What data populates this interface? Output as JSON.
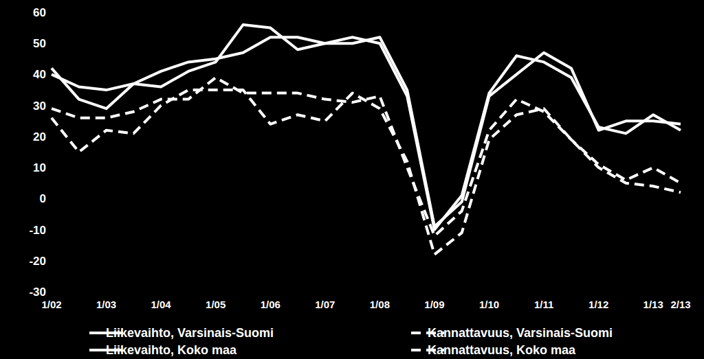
{
  "chart_data": {
    "type": "line",
    "categories": [
      "1/02",
      null,
      "1/03",
      null,
      "1/04",
      null,
      "1/05",
      null,
      "1/06",
      null,
      "1/07",
      null,
      "1/08",
      null,
      "1/09",
      null,
      "1/10",
      null,
      "1/11",
      null,
      "1/12",
      null,
      "1/13",
      "2/13"
    ],
    "series": [
      {
        "name": "Liikevaihto, Varsinais-Suomi",
        "color": "#ffffff",
        "line_style": "solid",
        "values": [
          40,
          36,
          35,
          37,
          36,
          41,
          44,
          56,
          55,
          48,
          50,
          52,
          50,
          33,
          -10,
          1,
          34,
          46,
          44,
          39,
          23,
          21,
          27,
          22
        ]
      },
      {
        "name": "Kannattavuus, Varsinais-Suomi",
        "color": "#ffffff",
        "line_style": "dashed",
        "values": [
          29,
          26,
          26,
          28,
          32,
          32,
          39,
          34,
          34,
          34,
          32,
          31,
          33,
          10,
          -12,
          -4,
          22,
          32,
          28,
          19,
          11,
          6,
          10,
          5
        ]
      },
      {
        "name": "Liikevaihto, Koko maa",
        "color": "#ffffff",
        "line_style": "solid",
        "values": [
          42,
          32,
          29,
          37,
          41,
          44,
          45,
          47,
          52,
          52,
          50,
          50,
          52,
          35,
          -9,
          -1,
          33,
          40,
          47,
          42,
          22,
          25,
          25,
          24
        ]
      },
      {
        "name": "Kannattavuus, Koko maa",
        "color": "#ffffff",
        "line_style": "dashed",
        "values": [
          26,
          15,
          22,
          21,
          30,
          35,
          35,
          35,
          24,
          27,
          25,
          34,
          29,
          12,
          -18,
          -11,
          19,
          27,
          29,
          19,
          10,
          5,
          4,
          2
        ]
      }
    ],
    "ylim": [
      -30,
      60
    ],
    "yticks": [
      -30,
      -20,
      -10,
      0,
      10,
      20,
      30,
      40,
      50,
      60
    ],
    "grid": false,
    "legend": "bottom"
  }
}
